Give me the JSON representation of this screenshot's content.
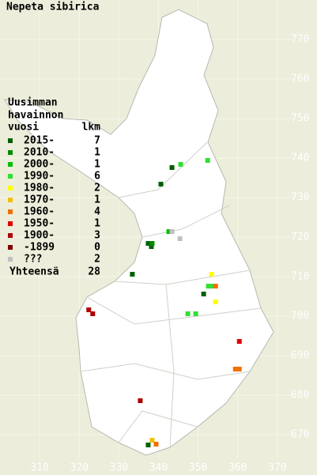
{
  "chart_data": {
    "type": "scatter",
    "title": "Nepeta sibirica",
    "legend_title": [
      "Uusimman",
      "havainnon",
      "vuosi"
    ],
    "count_header": "lkm",
    "total_label": "Yhteensä",
    "total": 28,
    "xlim": [
      300,
      380
    ],
    "ylim": [
      660,
      780
    ],
    "xticks": [
      310,
      320,
      330,
      340,
      350,
      360,
      370
    ],
    "yticks": [
      670,
      680,
      690,
      700,
      710,
      720,
      730,
      740,
      750,
      760,
      770
    ],
    "grid": true,
    "series": [
      {
        "name": "2015-",
        "color": "#006000",
        "count": 7,
        "x": [
          343.4,
          340.6,
          337.4,
          338.2,
          333.4,
          351.4,
          337.4
        ],
        "values": [
          737.6,
          733.4,
          718.4,
          717.6,
          710.6,
          705.6,
          667.4
        ]
      },
      {
        "name": "2010-",
        "color": "#008c00",
        "count": 1,
        "x": [
          338.4
        ],
        "values": [
          718.4
        ]
      },
      {
        "name": "2000-",
        "color": "#00c000",
        "count": 1,
        "x": [
          342.6
        ],
        "values": [
          721.4
        ]
      },
      {
        "name": "1990-",
        "color": "#30e030",
        "count": 6,
        "x": [
          345.6,
          352.4,
          352.6,
          347.4,
          349.4,
          353.6
        ],
        "values": [
          738.4,
          739.4,
          707.6,
          700.6,
          700.6,
          707.6
        ]
      },
      {
        "name": "1980-",
        "color": "#ffff00",
        "count": 2,
        "x": [
          353.4,
          354.4
        ],
        "values": [
          710.6,
          703.6
        ]
      },
      {
        "name": "1970-",
        "color": "#f0c000",
        "count": 1,
        "x": [
          338.4
        ],
        "values": [
          668.6
        ]
      },
      {
        "name": "1960-",
        "color": "#f07000",
        "count": 4,
        "x": [
          354.4,
          359.4,
          360.4,
          339.4
        ],
        "values": [
          707.6,
          686.6,
          686.6,
          667.6
        ]
      },
      {
        "name": "1950-",
        "color": "#e00000",
        "count": 1,
        "x": [
          360.4
        ],
        "values": [
          693.6
        ]
      },
      {
        "name": "1900-",
        "color": "#b00000",
        "count": 3,
        "x": [
          322.4,
          323.4,
          335.4
        ],
        "values": [
          701.6,
          700.6,
          678.6
        ]
      },
      {
        "name": "-1899",
        "color": "#800000",
        "count": 0,
        "x": [],
        "values": []
      },
      {
        "name": "???",
        "color": "#c0c0c0",
        "count": 2,
        "x": [
          343.4,
          345.4
        ],
        "values": [
          721.4,
          719.6
        ]
      }
    ]
  }
}
